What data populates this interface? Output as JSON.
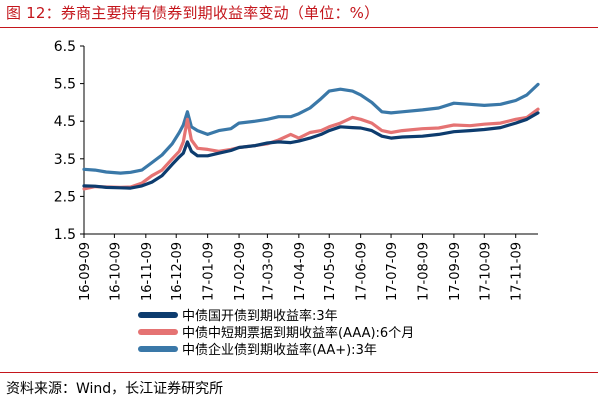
{
  "header": {
    "title": "图 12：券商主要持有债券到期收益率变动（单位：%）"
  },
  "footer": {
    "source": "资料来源：Wind，长江证券研究所"
  },
  "chart_data": {
    "type": "line",
    "title": "图 12：券商主要持有债券到期收益率变动（单位：%）",
    "xlabel": "",
    "ylabel": "",
    "ylim": [
      1.5,
      6.5
    ],
    "yticks": [
      1.5,
      2.5,
      3.5,
      4.5,
      5.5,
      6.5
    ],
    "ytick_labels": [
      "1.5",
      "2.5",
      "3.5",
      "4.5",
      "5.5",
      "6.5"
    ],
    "x_range": [
      "16-09-09",
      "17-12-01"
    ],
    "xtick_labels": [
      "16-09-09",
      "16-10-09",
      "16-11-09",
      "16-12-09",
      "17-01-09",
      "17-02-09",
      "17-03-09",
      "17-04-09",
      "17-05-09",
      "17-06-09",
      "17-07-09",
      "17-08-09",
      "17-09-09",
      "17-10-09",
      "17-11-09"
    ],
    "legend_position": "bottom",
    "grid": false,
    "series": [
      {
        "name": "中债国开债到期收益率:3年",
        "color": "#0d3c6e",
        "points": [
          [
            "16-09-09",
            2.78
          ],
          [
            "16-09-20",
            2.77
          ],
          [
            "16-10-01",
            2.74
          ],
          [
            "16-10-15",
            2.73
          ],
          [
            "16-10-25",
            2.72
          ],
          [
            "16-11-05",
            2.78
          ],
          [
            "16-11-15",
            2.88
          ],
          [
            "16-11-25",
            3.05
          ],
          [
            "16-12-05",
            3.35
          ],
          [
            "16-12-12",
            3.55
          ],
          [
            "16-12-16",
            3.65
          ],
          [
            "16-12-20",
            3.95
          ],
          [
            "16-12-24",
            3.7
          ],
          [
            "16-12-30",
            3.58
          ],
          [
            "17-01-09",
            3.58
          ],
          [
            "17-01-20",
            3.65
          ],
          [
            "17-02-01",
            3.72
          ],
          [
            "17-02-09",
            3.8
          ],
          [
            "17-02-25",
            3.85
          ],
          [
            "17-03-09",
            3.92
          ],
          [
            "17-03-20",
            3.95
          ],
          [
            "17-04-01",
            3.93
          ],
          [
            "17-04-09",
            3.97
          ],
          [
            "17-04-20",
            4.05
          ],
          [
            "17-05-01",
            4.15
          ],
          [
            "17-05-09",
            4.25
          ],
          [
            "17-05-20",
            4.35
          ],
          [
            "17-06-01",
            4.33
          ],
          [
            "17-06-09",
            4.32
          ],
          [
            "17-06-20",
            4.25
          ],
          [
            "17-06-30",
            4.1
          ],
          [
            "17-07-09",
            4.05
          ],
          [
            "17-07-20",
            4.08
          ],
          [
            "17-08-09",
            4.1
          ],
          [
            "17-08-25",
            4.15
          ],
          [
            "17-09-09",
            4.22
          ],
          [
            "17-09-25",
            4.25
          ],
          [
            "17-10-09",
            4.28
          ],
          [
            "17-10-25",
            4.33
          ],
          [
            "17-11-09",
            4.45
          ],
          [
            "17-11-20",
            4.55
          ],
          [
            "17-12-01",
            4.72
          ]
        ]
      },
      {
        "name": "中债中短期票据到期收益率(AAA):6个月",
        "color": "#e57373",
        "points": [
          [
            "16-09-09",
            2.7
          ],
          [
            "16-09-20",
            2.76
          ],
          [
            "16-10-01",
            2.75
          ],
          [
            "16-10-15",
            2.74
          ],
          [
            "16-10-25",
            2.75
          ],
          [
            "16-11-05",
            2.85
          ],
          [
            "16-11-15",
            3.05
          ],
          [
            "16-11-25",
            3.2
          ],
          [
            "16-12-05",
            3.5
          ],
          [
            "16-12-12",
            3.7
          ],
          [
            "16-12-16",
            3.95
          ],
          [
            "16-12-20",
            4.55
          ],
          [
            "16-12-24",
            4.0
          ],
          [
            "16-12-30",
            3.78
          ],
          [
            "17-01-09",
            3.75
          ],
          [
            "17-01-20",
            3.7
          ],
          [
            "17-02-01",
            3.75
          ],
          [
            "17-02-09",
            3.8
          ],
          [
            "17-02-25",
            3.85
          ],
          [
            "17-03-09",
            3.9
          ],
          [
            "17-03-20",
            4.0
          ],
          [
            "17-04-01",
            4.15
          ],
          [
            "17-04-09",
            4.05
          ],
          [
            "17-04-20",
            4.2
          ],
          [
            "17-05-01",
            4.25
          ],
          [
            "17-05-09",
            4.35
          ],
          [
            "17-05-20",
            4.45
          ],
          [
            "17-06-01",
            4.6
          ],
          [
            "17-06-09",
            4.55
          ],
          [
            "17-06-20",
            4.45
          ],
          [
            "17-06-30",
            4.25
          ],
          [
            "17-07-09",
            4.2
          ],
          [
            "17-07-20",
            4.25
          ],
          [
            "17-08-09",
            4.3
          ],
          [
            "17-08-25",
            4.32
          ],
          [
            "17-09-09",
            4.4
          ],
          [
            "17-09-25",
            4.38
          ],
          [
            "17-10-09",
            4.42
          ],
          [
            "17-10-25",
            4.45
          ],
          [
            "17-11-09",
            4.55
          ],
          [
            "17-11-20",
            4.6
          ],
          [
            "17-12-01",
            4.82
          ]
        ]
      },
      {
        "name": "中债企业债到期收益率(AA+):3年",
        "color": "#3a78a8",
        "points": [
          [
            "16-09-09",
            3.22
          ],
          [
            "16-09-20",
            3.2
          ],
          [
            "16-10-01",
            3.15
          ],
          [
            "16-10-15",
            3.12
          ],
          [
            "16-10-25",
            3.14
          ],
          [
            "16-11-05",
            3.2
          ],
          [
            "16-11-15",
            3.4
          ],
          [
            "16-11-25",
            3.6
          ],
          [
            "16-12-05",
            3.9
          ],
          [
            "16-12-12",
            4.2
          ],
          [
            "16-12-16",
            4.4
          ],
          [
            "16-12-20",
            4.75
          ],
          [
            "16-12-24",
            4.35
          ],
          [
            "16-12-30",
            4.25
          ],
          [
            "17-01-09",
            4.15
          ],
          [
            "17-01-20",
            4.25
          ],
          [
            "17-02-01",
            4.3
          ],
          [
            "17-02-09",
            4.45
          ],
          [
            "17-02-25",
            4.5
          ],
          [
            "17-03-09",
            4.55
          ],
          [
            "17-03-20",
            4.62
          ],
          [
            "17-04-01",
            4.62
          ],
          [
            "17-04-09",
            4.7
          ],
          [
            "17-04-20",
            4.85
          ],
          [
            "17-05-01",
            5.1
          ],
          [
            "17-05-09",
            5.3
          ],
          [
            "17-05-20",
            5.35
          ],
          [
            "17-06-01",
            5.3
          ],
          [
            "17-06-09",
            5.2
          ],
          [
            "17-06-20",
            5.0
          ],
          [
            "17-06-30",
            4.75
          ],
          [
            "17-07-09",
            4.72
          ],
          [
            "17-07-20",
            4.75
          ],
          [
            "17-08-09",
            4.8
          ],
          [
            "17-08-25",
            4.85
          ],
          [
            "17-09-09",
            4.98
          ],
          [
            "17-09-25",
            4.95
          ],
          [
            "17-10-09",
            4.92
          ],
          [
            "17-10-25",
            4.95
          ],
          [
            "17-11-09",
            5.05
          ],
          [
            "17-11-20",
            5.2
          ],
          [
            "17-12-01",
            5.48
          ]
        ]
      }
    ]
  }
}
